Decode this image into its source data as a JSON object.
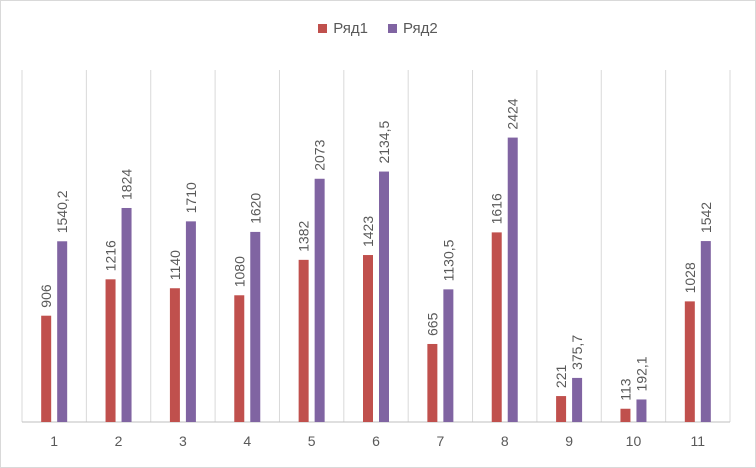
{
  "chart_data": {
    "type": "bar",
    "categories": [
      "1",
      "2",
      "3",
      "4",
      "5",
      "6",
      "7",
      "8",
      "9",
      "10",
      "11"
    ],
    "series": [
      {
        "name": "Ряд1",
        "color": "#c0504d",
        "values": [
          906,
          1216,
          1140,
          1080,
          1382,
          1423,
          665,
          1616,
          221,
          113,
          1028
        ],
        "labels": [
          "906",
          "1216",
          "1140",
          "1080",
          "1382",
          "1423",
          "665",
          "1616",
          "221",
          "113",
          "1028"
        ]
      },
      {
        "name": "Ряд2",
        "color": "#8064a2",
        "values": [
          1540.2,
          1824,
          1710,
          1620,
          2073,
          2134.5,
          1130.5,
          2424,
          375.7,
          192.1,
          1542
        ],
        "labels": [
          "1540,2",
          "1824",
          "1710",
          "1620",
          "2073",
          "2134,5",
          "1130,5",
          "2424",
          "375,7",
          "192,1",
          "1542"
        ]
      }
    ],
    "ylim": [
      0,
      3000
    ],
    "grid": "vertical category gridlines",
    "legend": "top"
  }
}
